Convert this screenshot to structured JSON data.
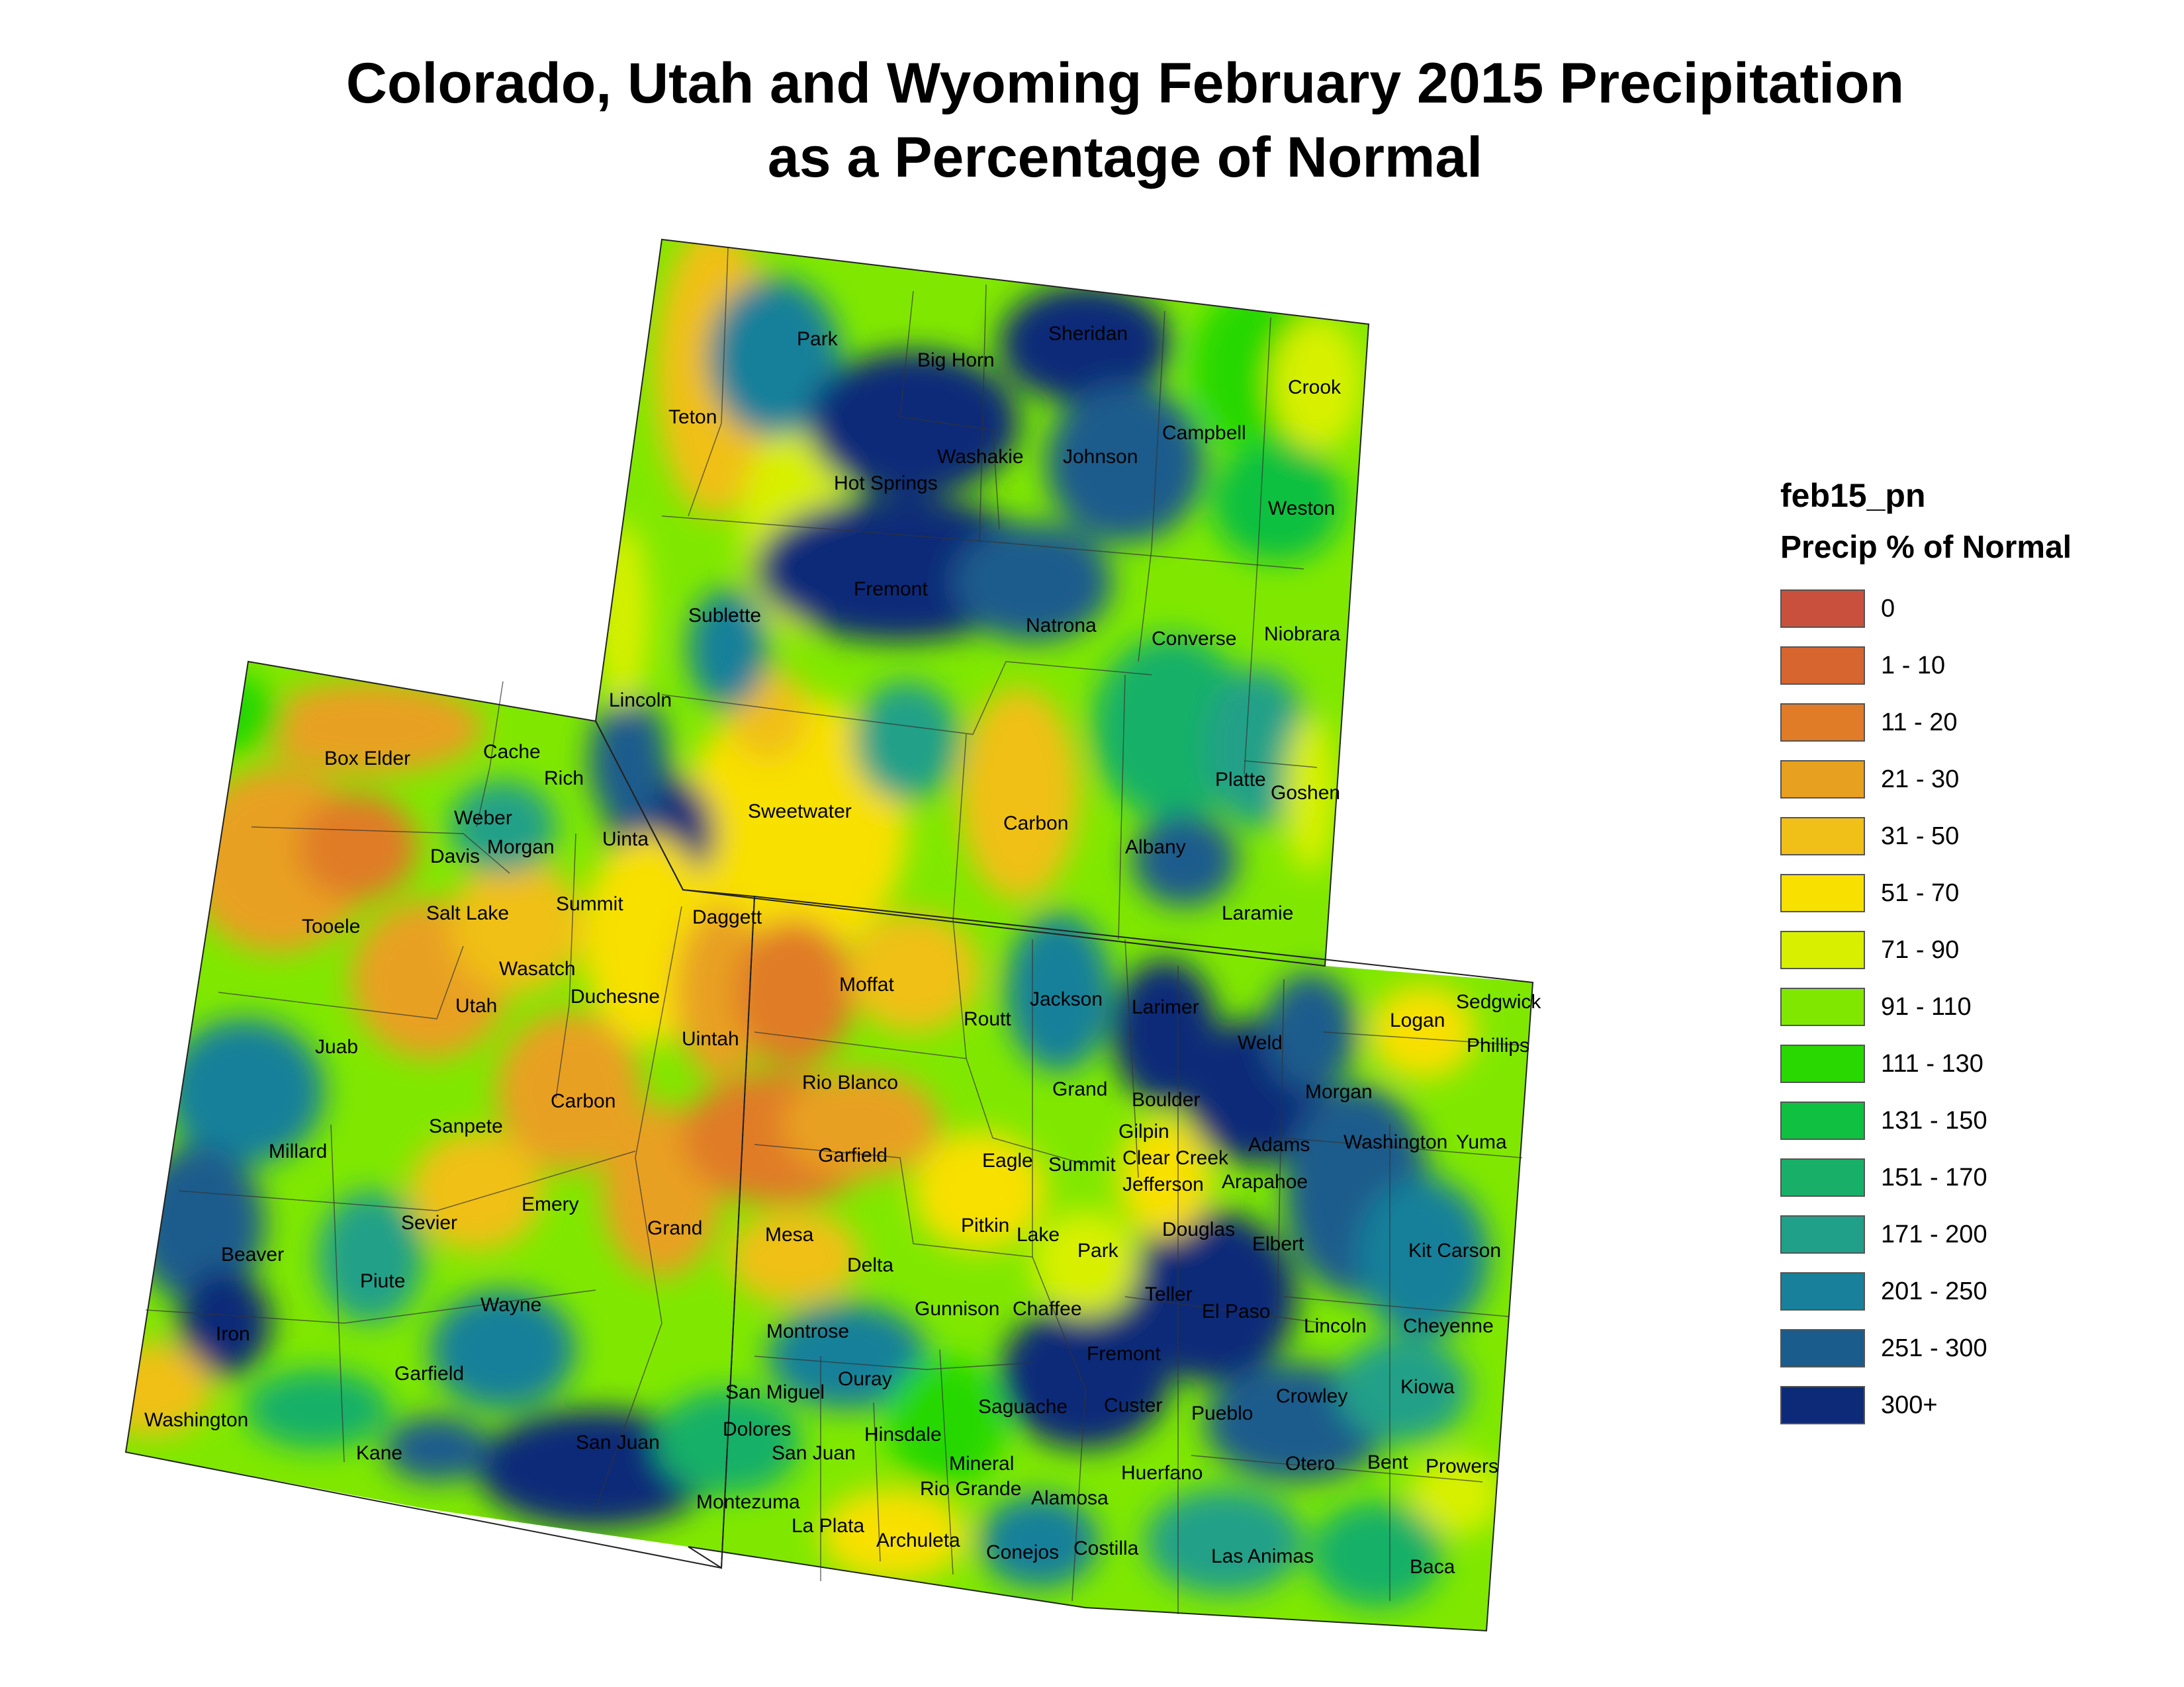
{
  "title_line1": "Colorado, Utah and Wyoming February 2015 Precipitation",
  "title_line2": "as a Percentage of Normal",
  "legend": {
    "layer": "feb15_pn",
    "title": "Precip % of Normal",
    "classes": [
      {
        "label": "0",
        "color": "#c8503c"
      },
      {
        "label": "1 - 10",
        "color": "#d66530"
      },
      {
        "label": "11 - 20",
        "color": "#e07b28"
      },
      {
        "label": "21 - 30",
        "color": "#e8a020"
      },
      {
        "label": "31 - 50",
        "color": "#f0c018"
      },
      {
        "label": "51 - 70",
        "color": "#f8e000"
      },
      {
        "label": "71 - 90",
        "color": "#d8f000"
      },
      {
        "label": "91 - 110",
        "color": "#80e800"
      },
      {
        "label": "111 - 130",
        "color": "#28d800"
      },
      {
        "label": "131 - 150",
        "color": "#10c040"
      },
      {
        "label": "151 - 170",
        "color": "#18b068"
      },
      {
        "label": "171 - 200",
        "color": "#20a088"
      },
      {
        "label": "201 - 250",
        "color": "#18809a"
      },
      {
        "label": "251 - 300",
        "color": "#1a5c8c"
      },
      {
        "label": "300+",
        "color": "#0d2a78"
      }
    ]
  },
  "counties": {
    "wyoming": [
      "Park",
      "Big Horn",
      "Sheridan",
      "Crook",
      "Teton",
      "Campbell",
      "Washakie",
      "Johnson",
      "Hot Springs",
      "Weston",
      "Fremont",
      "Natrona",
      "Sublette",
      "Converse",
      "Niobrara",
      "Lincoln",
      "Platte",
      "Goshen",
      "Sweetwater",
      "Carbon",
      "Uinta",
      "Albany",
      "Laramie"
    ],
    "utah": [
      "Box Elder",
      "Cache",
      "Rich",
      "Weber",
      "Davis",
      "Morgan",
      "Tooele",
      "Salt Lake",
      "Summit",
      "Daggett",
      "Wasatch",
      "Utah",
      "Duchesne",
      "Uintah",
      "Juab",
      "Sanpete",
      "Carbon",
      "Millard",
      "Emery",
      "Grand",
      "Sevier",
      "Beaver",
      "Piute",
      "Wayne",
      "Iron",
      "Garfield",
      "Washington",
      "Kane",
      "San Juan"
    ],
    "colorado": [
      "Moffat",
      "Routt",
      "Jackson",
      "Larimer",
      "Logan",
      "Sedgwick",
      "Phillips",
      "Weld",
      "Rio Blanco",
      "Grand",
      "Boulder",
      "Morgan",
      "Gilpin",
      "Adams",
      "Washington",
      "Yuma",
      "Garfield",
      "Eagle",
      "Summit",
      "Clear Creek",
      "Jefferson",
      "Arapahoe",
      "Pitkin",
      "Lake",
      "Douglas",
      "Mesa",
      "Elbert",
      "Park",
      "Kit Carson",
      "Delta",
      "Teller",
      "Gunnison",
      "Chaffee",
      "El Paso",
      "Lincoln",
      "Cheyenne",
      "Montrose",
      "Fremont",
      "Ouray",
      "San Miguel",
      "Saguache",
      "Custer",
      "Pueblo",
      "Crowley",
      "Kiowa",
      "Dolores",
      "Hinsdale",
      "San Juan",
      "Mineral",
      "Otero",
      "Bent",
      "Prowers",
      "Huerfano",
      "Rio Grande",
      "Alamosa",
      "Montezuma",
      "La Plata",
      "Archuleta",
      "Conejos",
      "Costilla",
      "Las Animas",
      "Baca"
    ]
  }
}
